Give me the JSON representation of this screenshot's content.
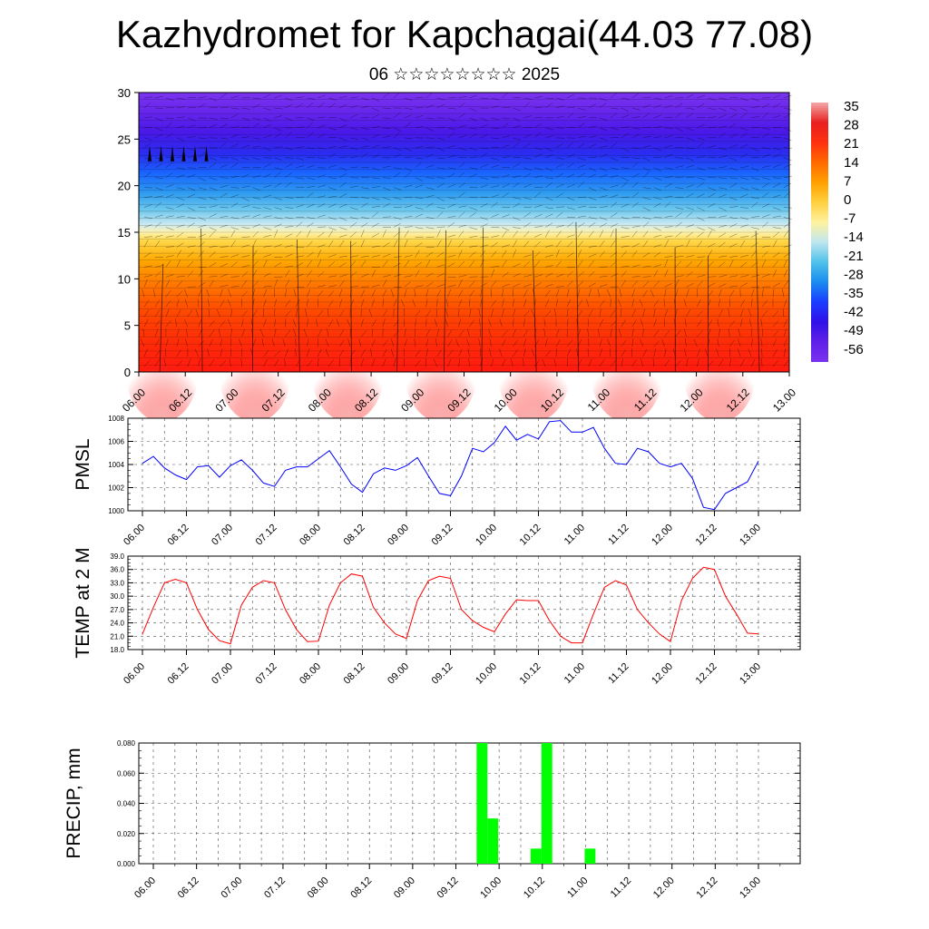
{
  "header": {
    "title": "Kazhydromet for Kapchagai(44.03 77.08)",
    "subtitle": "06 ☆☆☆☆☆☆☆☆ 2025"
  },
  "time_labels": [
    "06.00",
    "06.12",
    "07.00",
    "07.12",
    "08.00",
    "08.12",
    "09.00",
    "09.12",
    "10.00",
    "10.12",
    "11.00",
    "11.12",
    "12.00",
    "12.12",
    "13.00"
  ],
  "chart_data": [
    {
      "type": "heatmap",
      "title": "",
      "xlabel": "",
      "ylabel": "",
      "ylim": [
        0,
        30
      ],
      "y_ticks": [
        "0",
        "5",
        "10",
        "15",
        "20",
        "25",
        "30"
      ],
      "colorbar_labels": [
        "35",
        "28",
        "21",
        "14",
        "7",
        "0",
        "-7",
        "-14",
        "-21",
        "-28",
        "-35",
        "-42",
        "-49",
        "-56"
      ],
      "colorbar_colors": [
        "#f4a8a8",
        "#e82020",
        "#ff3010",
        "#ff6a00",
        "#ffa000",
        "#ffd040",
        "#fff2a0",
        "#bfe6f0",
        "#4fc2ea",
        "#1a8cf0",
        "#1a3cff",
        "#3010e8",
        "#6020e8",
        "#7a30f0"
      ]
    },
    {
      "type": "line",
      "ylabel": "PMSL",
      "ylim": [
        1000,
        1008
      ],
      "y_ticks": [
        "1000",
        "1002",
        "1004",
        "1006",
        "1008"
      ],
      "color": "#0000ff",
      "values": [
        1004.1,
        1004.7,
        1003.7,
        1003.1,
        1002.7,
        1003.8,
        1003.9,
        1002.9,
        1003.9,
        1004.4,
        1003.5,
        1002.4,
        1002.1,
        1003.5,
        1003.8,
        1003.8,
        1004.5,
        1005.2,
        1003.8,
        1002.3,
        1001.6,
        1003.2,
        1003.7,
        1003.5,
        1003.9,
        1004.6,
        1003.0,
        1001.5,
        1001.3,
        1003.0,
        1005.4,
        1005.1,
        1005.9,
        1007.3,
        1006.1,
        1006.6,
        1006.2,
        1007.7,
        1007.8,
        1006.8,
        1006.8,
        1007.2,
        1005.4,
        1004.1,
        1004.0,
        1005.4,
        1005.1,
        1004.1,
        1003.8,
        1004.1,
        1002.8,
        1000.3,
        1000.1,
        1001.5,
        1002.0,
        1002.5,
        1004.3
      ]
    },
    {
      "type": "line",
      "ylabel": "TEMP at 2 M",
      "ylim": [
        18,
        39
      ],
      "y_ticks": [
        "18.0",
        "21.0",
        "24.0",
        "27.0",
        "30.0",
        "33.0",
        "36.0",
        "39.0"
      ],
      "color": "#ff0000",
      "values": [
        21.5,
        27.5,
        33.0,
        33.8,
        33.0,
        27.0,
        22.5,
        20.0,
        19.3,
        28.0,
        32.0,
        33.5,
        33.0,
        27.0,
        22.5,
        19.8,
        19.9,
        28.0,
        33.0,
        35.0,
        34.5,
        27.5,
        24.0,
        21.5,
        20.5,
        29.0,
        33.5,
        34.5,
        34.0,
        27.0,
        24.5,
        23.0,
        22.0,
        26.0,
        29.2,
        29.0,
        29.0,
        24.5,
        21.0,
        19.5,
        19.5,
        26.0,
        32.0,
        33.5,
        32.5,
        27.0,
        24.0,
        21.5,
        19.8,
        29.0,
        34.0,
        36.5,
        36.0,
        30.0,
        26.0,
        21.7,
        21.5
      ]
    },
    {
      "type": "bar",
      "ylabel": "PRECIP, mm",
      "ylim": [
        0,
        0.08
      ],
      "y_ticks": [
        "0.000",
        "0.020",
        "0.040",
        "0.060",
        "0.080"
      ],
      "color": "#00ff00",
      "bars": [
        {
          "time_index": 30,
          "value": 0.08
        },
        {
          "time_index": 31,
          "value": 0.03
        },
        {
          "time_index": 35,
          "value": 0.01
        },
        {
          "time_index": 36,
          "value": 0.08
        },
        {
          "time_index": 40,
          "value": 0.01
        }
      ]
    }
  ]
}
